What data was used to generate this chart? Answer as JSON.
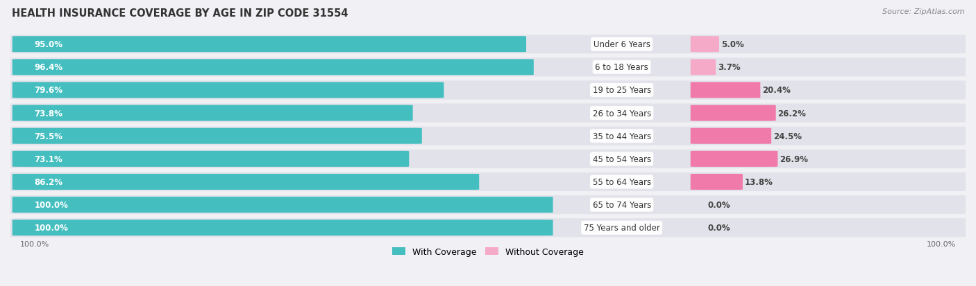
{
  "title": "HEALTH INSURANCE COVERAGE BY AGE IN ZIP CODE 31554",
  "source": "Source: ZipAtlas.com",
  "categories": [
    "Under 6 Years",
    "6 to 18 Years",
    "19 to 25 Years",
    "26 to 34 Years",
    "35 to 44 Years",
    "45 to 54 Years",
    "55 to 64 Years",
    "65 to 74 Years",
    "75 Years and older"
  ],
  "with_coverage": [
    95.0,
    96.4,
    79.6,
    73.8,
    75.5,
    73.1,
    86.2,
    100.0,
    100.0
  ],
  "without_coverage": [
    5.0,
    3.7,
    20.4,
    26.2,
    24.5,
    26.9,
    13.8,
    0.0,
    0.0
  ],
  "color_with": "#45bec0",
  "color_without": "#f07aaa",
  "color_without_light": "#f5aac8",
  "bg_color": "#f0f0f5",
  "row_bg": "#e2e2ea",
  "title_fontsize": 10.5,
  "label_fontsize": 8.5,
  "bar_label_fontsize": 8.5,
  "legend_fontsize": 9,
  "source_fontsize": 8
}
